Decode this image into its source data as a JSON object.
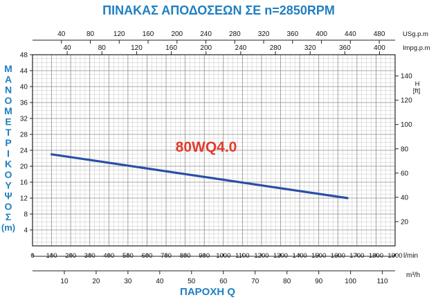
{
  "chart_data": {
    "type": "line",
    "title": "ΠΙΝΑΚΑΣ ΑΠΟΔΟΣΕΩΝ ΣΕ n=2850RPM",
    "xlabel": "ΠΑΡΟΧΗ Q",
    "ylabel_letters": [
      "Μ",
      "Α",
      "Ν",
      "Ο",
      "Μ",
      "Ε",
      "Τ",
      "Ρ",
      "Ι",
      "Κ",
      "Ο",
      "Υ",
      "Ψ",
      "Ο",
      "Σ"
    ],
    "ylabel_unit": "(m)",
    "model_label": "80WQ4.0",
    "series": [
      {
        "name": "80WQ4.0",
        "x": [
          100,
          1650
        ],
        "y": [
          23,
          12
        ]
      }
    ],
    "axes": {
      "lpm": {
        "unit": "l/min",
        "min": 0,
        "max": 1900,
        "ticks": [
          0,
          100,
          200,
          300,
          400,
          500,
          600,
          700,
          800,
          900,
          1000,
          1100,
          1200,
          1300,
          1400,
          1500,
          1600,
          1700,
          1800,
          1900
        ]
      },
      "usgpm": {
        "unit": "USg.p.m",
        "ticks": [
          40,
          80,
          120,
          160,
          200,
          240,
          280,
          320,
          360,
          400,
          440,
          480
        ]
      },
      "impgpm": {
        "unit": "Impg.p.m",
        "ticks": [
          40,
          80,
          120,
          160,
          200,
          240,
          280,
          320,
          360,
          400
        ]
      },
      "m3h": {
        "unit": "m³/h",
        "ticks": [
          10,
          20,
          30,
          40,
          50,
          60,
          70,
          80,
          90,
          100,
          110
        ]
      },
      "head_m": {
        "min": 0,
        "max": 48,
        "ticks": [
          4,
          8,
          12,
          16,
          20,
          24,
          28,
          32,
          36,
          40,
          44,
          48
        ]
      },
      "head_ft": {
        "unit_top": "H",
        "unit_bottom": "[ft]",
        "ticks": [
          20,
          40,
          60,
          80,
          100,
          120,
          140
        ]
      }
    },
    "colors": {
      "title": "#1f7fc1",
      "axis_label": "#1f7fc1",
      "curve": "#2a4fa8",
      "model_label": "#e23b2a",
      "grid": "#c4c4c4",
      "grid_major": "#8c8c8c"
    },
    "grid": true
  }
}
